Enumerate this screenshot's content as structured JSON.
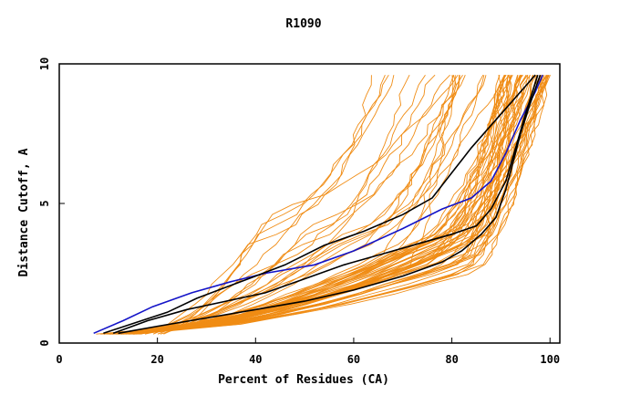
{
  "chart_data": {
    "type": "line",
    "title": "R1090",
    "xlabel": "Percent of Residues (CA)",
    "ylabel": "Distance Cutoff, A",
    "xlim": [
      0,
      102
    ],
    "ylim": [
      0,
      10
    ],
    "xticks": [
      "0",
      "20",
      "40",
      "60",
      "80",
      "100"
    ],
    "yticks": [
      "0",
      "5",
      "10"
    ],
    "grid": false,
    "colors": {
      "background_models": "#f08c14",
      "highlight_black": "#000000",
      "highlight_blue": "#1414c8",
      "axes": "#000000"
    },
    "series": [
      {
        "role": "highlight",
        "color": "#1414c8",
        "x": [
          7,
          13,
          19,
          27,
          35,
          42,
          52,
          60,
          70,
          78,
          84,
          88,
          91,
          94,
          97,
          98.5
        ],
        "y": [
          0.35,
          0.8,
          1.3,
          1.8,
          2.2,
          2.5,
          2.8,
          3.3,
          4.1,
          4.8,
          5.2,
          5.8,
          6.8,
          8.0,
          9.0,
          9.6
        ]
      },
      {
        "role": "highlight",
        "color": "#000000",
        "x": [
          9,
          15,
          22,
          28,
          34,
          40,
          46,
          54,
          62,
          70,
          76,
          80,
          84,
          88,
          92,
          95,
          97
        ],
        "y": [
          0.35,
          0.7,
          1.1,
          1.6,
          2.0,
          2.4,
          2.8,
          3.5,
          4.0,
          4.6,
          5.2,
          6.1,
          7.0,
          7.8,
          8.6,
          9.2,
          9.6
        ]
      },
      {
        "role": "highlight",
        "color": "#000000",
        "x": [
          11,
          18,
          26,
          34,
          42,
          50,
          58,
          66,
          74,
          80,
          85,
          88,
          91,
          93,
          95,
          97.5
        ],
        "y": [
          0.35,
          0.8,
          1.2,
          1.5,
          1.8,
          2.3,
          2.8,
          3.2,
          3.6,
          3.9,
          4.2,
          4.8,
          5.8,
          7.0,
          8.2,
          9.6
        ]
      },
      {
        "role": "highlight",
        "color": "#000000",
        "x": [
          12,
          20,
          30,
          40,
          50,
          60,
          70,
          78,
          82,
          86,
          89,
          91,
          92.5,
          94,
          96,
          98
        ],
        "y": [
          0.35,
          0.6,
          0.9,
          1.2,
          1.5,
          1.9,
          2.4,
          2.9,
          3.3,
          3.9,
          4.5,
          5.5,
          6.5,
          7.5,
          8.6,
          9.6
        ]
      }
    ]
  }
}
